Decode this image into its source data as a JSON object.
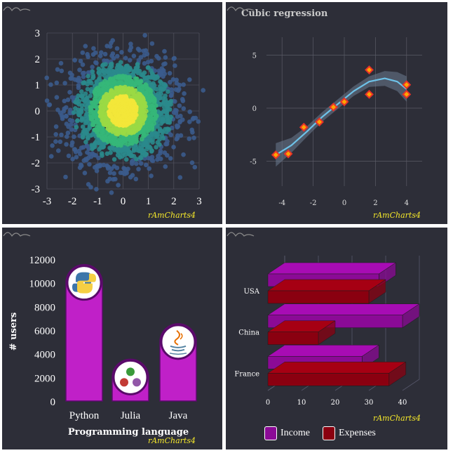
{
  "credit": "rAmCharts4",
  "chart_data": [
    {
      "type": "scatter",
      "title": "",
      "description_points": "Bivariate standard normal sample, ~2000 points, colored by density (viridis: blue outer to yellow center)",
      "xlim": [
        -3,
        3
      ],
      "ylim": [
        -3,
        3
      ],
      "xticks": [
        "-3",
        "-2",
        "-1",
        "0",
        "1",
        "2",
        "3"
      ],
      "yticks": [
        "-3",
        "-2",
        "-1",
        "0",
        "1",
        "2",
        "3"
      ],
      "n_points": 2000,
      "colors": [
        "#3b5b8c",
        "#2a8a8c",
        "#35b779",
        "#9ad945",
        "#f3e73a"
      ]
    },
    {
      "type": "scatter",
      "title": "Cubic regression",
      "xlim": [
        -5,
        5
      ],
      "ylim": [
        -8,
        8
      ],
      "xticks": [
        "-4",
        "-2",
        "0",
        "2",
        "4"
      ],
      "yticks": [
        "-5",
        "0",
        "5"
      ],
      "points": [
        {
          "x": -4.4,
          "y": -4.4
        },
        {
          "x": -3.6,
          "y": -4.3
        },
        {
          "x": -2.6,
          "y": -1.8
        },
        {
          "x": -1.6,
          "y": -1.3
        },
        {
          "x": -0.7,
          "y": 0.1
        },
        {
          "x": 0.0,
          "y": 0.6
        },
        {
          "x": 1.6,
          "y": 3.6
        },
        {
          "x": 1.6,
          "y": 1.3
        },
        {
          "x": 4.0,
          "y": 2.2
        },
        {
          "x": 4.0,
          "y": 1.3
        }
      ],
      "fit_x": [
        -4.4,
        -3.4,
        -2.4,
        -1.4,
        -0.4,
        0.6,
        1.6,
        2.6,
        3.4,
        4.0
      ],
      "fit_y": [
        -4.4,
        -3.5,
        -2.2,
        -0.8,
        0.4,
        1.6,
        2.5,
        2.8,
        2.5,
        1.8
      ],
      "band_halfwidth": [
        1.1,
        0.7,
        0.5,
        0.45,
        0.45,
        0.45,
        0.5,
        0.7,
        0.9,
        1.2
      ],
      "colors": {
        "line": "#6ec2e8",
        "band": "#6b7b90",
        "marker": "#e8322a",
        "marker_fill": "#ffa500"
      }
    },
    {
      "type": "bar",
      "title": "",
      "xlabel": "Programming language",
      "ylabel": "# users",
      "categories": [
        "Python",
        "Julia",
        "Java"
      ],
      "values": [
        10000,
        2000,
        5000
      ],
      "ylim": [
        0,
        12000
      ],
      "yticks": [
        "0",
        "2000",
        "4000",
        "6000",
        "8000",
        "10000",
        "12000"
      ],
      "icons": [
        "python-logo-icon",
        "julia-logo-icon",
        "java-logo-icon"
      ],
      "colors": {
        "bar": "#c020c8",
        "bar_stroke": "#5a0a6a"
      }
    },
    {
      "type": "bar",
      "orientation": "horizontal-3d",
      "title": "",
      "categories": [
        "USA",
        "China",
        "France"
      ],
      "series": [
        {
          "name": "Income",
          "values": [
            33,
            40,
            28
          ],
          "color": "#8b0a96"
        },
        {
          "name": "Expenses",
          "values": [
            30,
            15,
            36
          ],
          "color": "#8a0010"
        }
      ],
      "xlim": [
        0,
        40
      ],
      "xticks": [
        "0",
        "10",
        "20",
        "30",
        "40"
      ],
      "legend": "bottom"
    }
  ],
  "legend": {
    "income": "Income",
    "expenses": "Expenses",
    "income_color": "#8b0a96",
    "expenses_color": "#8a0010"
  }
}
